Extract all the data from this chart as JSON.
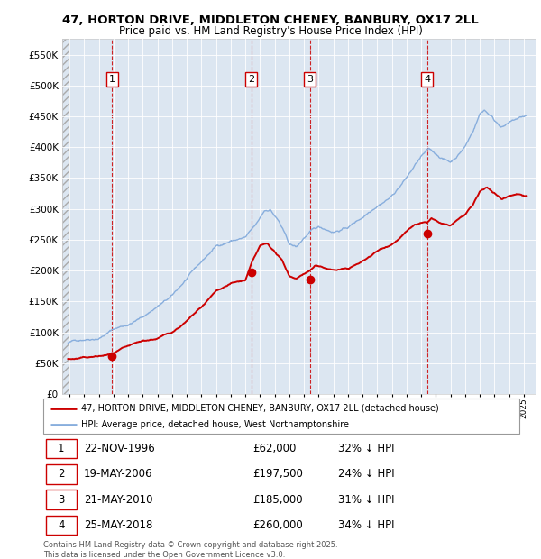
{
  "title_line1": "47, HORTON DRIVE, MIDDLETON CHENEY, BANBURY, OX17 2LL",
  "title_line2": "Price paid vs. HM Land Registry's House Price Index (HPI)",
  "legend_label_red": "47, HORTON DRIVE, MIDDLETON CHENEY, BANBURY, OX17 2LL (detached house)",
  "legend_label_blue": "HPI: Average price, detached house, West Northamptonshire",
  "footer": "Contains HM Land Registry data © Crown copyright and database right 2025.\nThis data is licensed under the Open Government Licence v3.0.",
  "transactions": [
    {
      "num": 1,
      "date": "22-NOV-1996",
      "price": 62000,
      "pct": "32% ↓ HPI",
      "year_x": 1996.9
    },
    {
      "num": 2,
      "date": "19-MAY-2006",
      "price": 197500,
      "pct": "24% ↓ HPI",
      "year_x": 2006.4
    },
    {
      "num": 3,
      "date": "21-MAY-2010",
      "price": 185000,
      "pct": "31% ↓ HPI",
      "year_x": 2010.4
    },
    {
      "num": 4,
      "date": "25-MAY-2018",
      "price": 260000,
      "pct": "34% ↓ HPI",
      "year_x": 2018.4
    }
  ],
  "vline_color_red": "#cc0000",
  "background_color": "#dce6f1",
  "hpi_color": "#88aedd",
  "price_color": "#cc0000",
  "ylim": [
    0,
    575000
  ],
  "yticks": [
    0,
    50000,
    100000,
    150000,
    200000,
    250000,
    300000,
    350000,
    400000,
    450000,
    500000,
    550000
  ],
  "xlim_start": 1993.5,
  "xlim_end": 2025.8,
  "hpi_key_points": [
    [
      1993.9,
      83000
    ],
    [
      1995.0,
      90000
    ],
    [
      1996.0,
      95000
    ],
    [
      1997.0,
      110000
    ],
    [
      1998.0,
      118000
    ],
    [
      1999.0,
      130000
    ],
    [
      2000.0,
      148000
    ],
    [
      2001.0,
      163000
    ],
    [
      2002.0,
      190000
    ],
    [
      2003.0,
      215000
    ],
    [
      2004.0,
      240000
    ],
    [
      2005.0,
      250000
    ],
    [
      2006.0,
      255000
    ],
    [
      2006.8,
      275000
    ],
    [
      2007.3,
      295000
    ],
    [
      2007.7,
      298000
    ],
    [
      2008.3,
      278000
    ],
    [
      2009.0,
      240000
    ],
    [
      2009.5,
      235000
    ],
    [
      2010.0,
      250000
    ],
    [
      2010.5,
      260000
    ],
    [
      2011.0,
      265000
    ],
    [
      2012.0,
      260000
    ],
    [
      2013.0,
      268000
    ],
    [
      2014.0,
      285000
    ],
    [
      2015.0,
      308000
    ],
    [
      2016.0,
      325000
    ],
    [
      2017.0,
      355000
    ],
    [
      2017.5,
      372000
    ],
    [
      2018.0,
      388000
    ],
    [
      2018.5,
      398000
    ],
    [
      2019.0,
      390000
    ],
    [
      2019.5,
      383000
    ],
    [
      2020.0,
      378000
    ],
    [
      2020.5,
      390000
    ],
    [
      2021.0,
      405000
    ],
    [
      2021.5,
      428000
    ],
    [
      2022.0,
      458000
    ],
    [
      2022.3,
      465000
    ],
    [
      2022.8,
      455000
    ],
    [
      2023.0,
      448000
    ],
    [
      2023.5,
      440000
    ],
    [
      2024.0,
      445000
    ],
    [
      2024.5,
      450000
    ],
    [
      2025.2,
      455000
    ]
  ],
  "price_key_points": [
    [
      1993.9,
      57000
    ],
    [
      1994.5,
      57500
    ],
    [
      1996.0,
      60000
    ],
    [
      1996.9,
      62000
    ],
    [
      1997.5,
      68000
    ],
    [
      1999.0,
      78000
    ],
    [
      2000.0,
      82000
    ],
    [
      2001.0,
      92000
    ],
    [
      2002.0,
      110000
    ],
    [
      2003.0,
      130000
    ],
    [
      2004.0,
      155000
    ],
    [
      2005.0,
      168000
    ],
    [
      2006.0,
      172000
    ],
    [
      2006.4,
      197500
    ],
    [
      2007.0,
      225000
    ],
    [
      2007.5,
      228000
    ],
    [
      2008.0,
      215000
    ],
    [
      2008.5,
      200000
    ],
    [
      2009.0,
      175000
    ],
    [
      2009.5,
      172000
    ],
    [
      2010.0,
      180000
    ],
    [
      2010.4,
      185000
    ],
    [
      2010.8,
      193000
    ],
    [
      2011.0,
      190000
    ],
    [
      2012.0,
      185000
    ],
    [
      2013.0,
      187000
    ],
    [
      2014.0,
      198000
    ],
    [
      2015.0,
      215000
    ],
    [
      2016.0,
      228000
    ],
    [
      2017.0,
      248000
    ],
    [
      2017.5,
      258000
    ],
    [
      2018.0,
      260000
    ],
    [
      2018.4,
      260000
    ],
    [
      2018.7,
      267000
    ],
    [
      2019.0,
      262000
    ],
    [
      2019.5,
      255000
    ],
    [
      2020.0,
      252000
    ],
    [
      2020.5,
      262000
    ],
    [
      2021.0,
      270000
    ],
    [
      2021.5,
      282000
    ],
    [
      2022.0,
      305000
    ],
    [
      2022.5,
      310000
    ],
    [
      2023.0,
      302000
    ],
    [
      2023.5,
      292000
    ],
    [
      2024.0,
      298000
    ],
    [
      2024.5,
      302000
    ],
    [
      2025.2,
      300000
    ]
  ]
}
